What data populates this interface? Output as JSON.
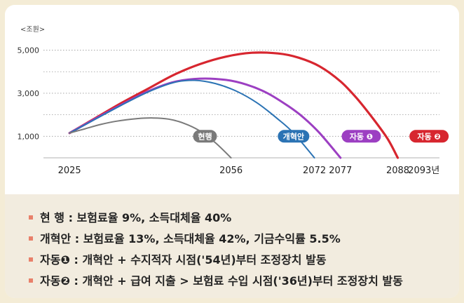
{
  "chart_data": {
    "type": "line",
    "unit_label": "<조원>",
    "y_ticks": [
      1000,
      3000,
      5000
    ],
    "y_tick_labels": [
      "1,000",
      "3,000",
      "5,000"
    ],
    "ylim": [
      0,
      5800
    ],
    "xlim": [
      2020,
      2096
    ],
    "x_tick_labels": [
      {
        "year": 2025,
        "label": "2025"
      },
      {
        "year": 2056,
        "label": "2056"
      },
      {
        "year": 2072,
        "label": "2072"
      },
      {
        "year": 2077,
        "label": "2077"
      },
      {
        "year": 2088,
        "label": "2088"
      },
      {
        "year": 2093,
        "label": "2093년"
      }
    ],
    "grid": "horizontal-dotted",
    "series": [
      {
        "name": "현행",
        "color": "#7a7a7a",
        "label_at": [
          2051,
          1000
        ],
        "points": [
          [
            2025,
            1150
          ],
          [
            2028,
            1350
          ],
          [
            2031,
            1550
          ],
          [
            2034,
            1700
          ],
          [
            2038,
            1820
          ],
          [
            2041,
            1850
          ],
          [
            2044,
            1800
          ],
          [
            2047,
            1600
          ],
          [
            2050,
            1250
          ],
          [
            2053,
            700
          ],
          [
            2056,
            0
          ]
        ]
      },
      {
        "name": "개혁안",
        "color": "#2b73b4",
        "label_at": [
          2068,
          1000
        ],
        "points": [
          [
            2025,
            1150
          ],
          [
            2030,
            1800
          ],
          [
            2035,
            2450
          ],
          [
            2040,
            3050
          ],
          [
            2045,
            3500
          ],
          [
            2049,
            3600
          ],
          [
            2053,
            3450
          ],
          [
            2057,
            3100
          ],
          [
            2061,
            2550
          ],
          [
            2065,
            1800
          ],
          [
            2068,
            1150
          ],
          [
            2072,
            0
          ]
        ]
      },
      {
        "name": "자동 ❶",
        "color": "#9c3fc2",
        "label_at": [
          2081,
          1000
        ],
        "points": [
          [
            2025,
            1150
          ],
          [
            2030,
            1820
          ],
          [
            2035,
            2470
          ],
          [
            2040,
            3080
          ],
          [
            2045,
            3520
          ],
          [
            2050,
            3680
          ],
          [
            2055,
            3620
          ],
          [
            2059,
            3400
          ],
          [
            2063,
            3000
          ],
          [
            2067,
            2400
          ],
          [
            2070,
            1850
          ],
          [
            2073,
            1150
          ],
          [
            2077,
            0
          ]
        ]
      },
      {
        "name": "자동 ❷",
        "color": "#d7262f",
        "label_at": [
          2094,
          1000
        ],
        "points": [
          [
            2025,
            1150
          ],
          [
            2030,
            1850
          ],
          [
            2035,
            2550
          ],
          [
            2040,
            3200
          ],
          [
            2045,
            3850
          ],
          [
            2050,
            4350
          ],
          [
            2055,
            4700
          ],
          [
            2060,
            4880
          ],
          [
            2065,
            4850
          ],
          [
            2069,
            4650
          ],
          [
            2073,
            4250
          ],
          [
            2077,
            3550
          ],
          [
            2080,
            2800
          ],
          [
            2083,
            1900
          ],
          [
            2086,
            900
          ],
          [
            2088,
            0
          ]
        ]
      }
    ]
  },
  "legend": [
    {
      "text": "현   행 : 보험료율 9%, 소득대체율 40%"
    },
    {
      "text": "개혁안 : 보험료율 13%, 소득대체율 42%, 기금수익률 5.5%"
    },
    {
      "text": "자동❶ : 개혁안 + 수지적자 시점('54년)부터 조정장치 발동"
    },
    {
      "text": "자동❷ : 개혁안 + 급여 지출 > 보험료 수입 시점('36년)부터 조정장치 발동"
    }
  ]
}
